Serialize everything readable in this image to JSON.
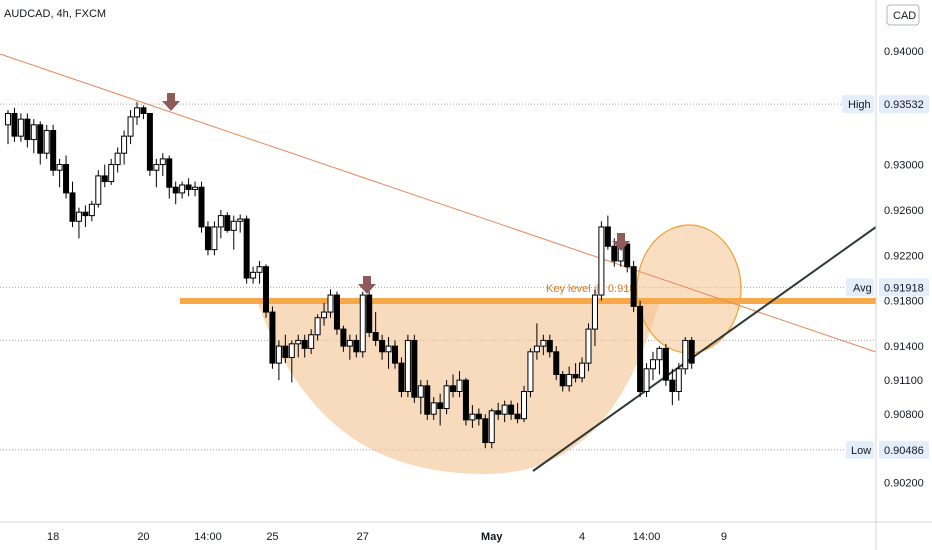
{
  "symbol": "AUDCAD, 4h, FXCM",
  "currency": "CAD",
  "colors": {
    "bull_fill": "#ffffff",
    "bear_fill": "#000000",
    "candle_stroke": "#000000",
    "trend": "#e8875a",
    "key_band": "#f7a94a",
    "cup_fill": "#f4c28f",
    "support": "#2f3b33",
    "arrow": "#8e5a5a",
    "label_bg": "#e3eefa"
  },
  "price_labels": {
    "high": {
      "name": "High",
      "value": "0.93532"
    },
    "avg": {
      "name": "Avg",
      "value": "0.91918"
    },
    "low": {
      "name": "Low",
      "value": "0.90486"
    }
  },
  "annotation": "Key  level @ 0.918",
  "chart_data": {
    "type": "candlestick",
    "title": "AUDCAD, 4h, FXCM",
    "y_unit": "CAD",
    "ylim": [
      0.8985,
      0.9445
    ],
    "y_ticks": [
      0.94,
      0.93,
      0.926,
      0.922,
      0.918,
      0.914,
      0.911,
      0.908,
      0.902
    ],
    "y_tick_labels": [
      "0.94000",
      "0.93000",
      "0.92600",
      "0.92200",
      "0.91800",
      "0.91400",
      "0.91100",
      "0.90800",
      "0.90200"
    ],
    "x_tick_labels": [
      "18",
      "20",
      "14:00",
      "25",
      "27",
      "May",
      "4",
      "14:00",
      "9"
    ],
    "x_tick_index": [
      7,
      21,
      31,
      41,
      55,
      75,
      89,
      99,
      111
    ],
    "reference_lines": {
      "high": 0.93532,
      "avg": 0.91918,
      "low": 0.90486
    },
    "key_level": 0.918,
    "candles": [
      [
        0.9335,
        0.9348,
        0.9318,
        0.9345
      ],
      [
        0.9345,
        0.935,
        0.932,
        0.9325
      ],
      [
        0.9325,
        0.9345,
        0.932,
        0.934
      ],
      [
        0.934,
        0.9345,
        0.9315,
        0.9322
      ],
      [
        0.9322,
        0.934,
        0.931,
        0.9335
      ],
      [
        0.9335,
        0.9338,
        0.93,
        0.931
      ],
      [
        0.931,
        0.9335,
        0.9305,
        0.933
      ],
      [
        0.933,
        0.9335,
        0.929,
        0.9295
      ],
      [
        0.9295,
        0.9305,
        0.928,
        0.93
      ],
      [
        0.93,
        0.9308,
        0.927,
        0.9275
      ],
      [
        0.9275,
        0.9285,
        0.9245,
        0.925
      ],
      [
        0.925,
        0.9262,
        0.9235,
        0.9258
      ],
      [
        0.9258,
        0.9264,
        0.9245,
        0.9255
      ],
      [
        0.9255,
        0.9268,
        0.925,
        0.9265
      ],
      [
        0.9265,
        0.9295,
        0.9262,
        0.929
      ],
      [
        0.929,
        0.93,
        0.928,
        0.9285
      ],
      [
        0.9285,
        0.9305,
        0.9282,
        0.93
      ],
      [
        0.93,
        0.9315,
        0.9293,
        0.931
      ],
      [
        0.931,
        0.933,
        0.93,
        0.9325
      ],
      [
        0.9325,
        0.9348,
        0.9318,
        0.9342
      ],
      [
        0.9342,
        0.9355,
        0.9335,
        0.935
      ],
      [
        0.935,
        0.9352,
        0.934,
        0.9345
      ],
      [
        0.9345,
        0.9345,
        0.929,
        0.9295
      ],
      [
        0.9295,
        0.9305,
        0.928,
        0.93
      ],
      [
        0.93,
        0.931,
        0.929,
        0.9305
      ],
      [
        0.9305,
        0.9308,
        0.927,
        0.928
      ],
      [
        0.928,
        0.9285,
        0.9265,
        0.9275
      ],
      [
        0.9275,
        0.9285,
        0.927,
        0.9282
      ],
      [
        0.9282,
        0.9288,
        0.9272,
        0.9278
      ],
      [
        0.9278,
        0.9285,
        0.9272,
        0.928
      ],
      [
        0.928,
        0.9285,
        0.924,
        0.9245
      ],
      [
        0.9245,
        0.925,
        0.922,
        0.9225
      ],
      [
        0.9225,
        0.925,
        0.922,
        0.9245
      ],
      [
        0.9245,
        0.926,
        0.9235,
        0.9255
      ],
      [
        0.9255,
        0.9258,
        0.924,
        0.9242
      ],
      [
        0.9242,
        0.9255,
        0.9225,
        0.925
      ],
      [
        0.925,
        0.9256,
        0.924,
        0.9252
      ],
      [
        0.9252,
        0.9255,
        0.9195,
        0.92
      ],
      [
        0.92,
        0.921,
        0.9195,
        0.9205
      ],
      [
        0.9205,
        0.9215,
        0.9195,
        0.921
      ],
      [
        0.921,
        0.9212,
        0.9165,
        0.917
      ],
      [
        0.917,
        0.9175,
        0.912,
        0.9125
      ],
      [
        0.9125,
        0.9145,
        0.911,
        0.914
      ],
      [
        0.914,
        0.915,
        0.9125,
        0.913
      ],
      [
        0.913,
        0.9145,
        0.9108,
        0.9142
      ],
      [
        0.9142,
        0.915,
        0.913,
        0.9145
      ],
      [
        0.9145,
        0.915,
        0.913,
        0.9138
      ],
      [
        0.9138,
        0.9155,
        0.9133,
        0.915
      ],
      [
        0.915,
        0.9168,
        0.9145,
        0.9165
      ],
      [
        0.9165,
        0.9178,
        0.9158,
        0.917
      ],
      [
        0.917,
        0.919,
        0.9165,
        0.9185
      ],
      [
        0.9185,
        0.9188,
        0.915,
        0.9155
      ],
      [
        0.9155,
        0.9158,
        0.9135,
        0.914
      ],
      [
        0.914,
        0.915,
        0.9128,
        0.9145
      ],
      [
        0.9145,
        0.915,
        0.913,
        0.9135
      ],
      [
        0.9135,
        0.9188,
        0.913,
        0.9185
      ],
      [
        0.9185,
        0.9188,
        0.9148,
        0.9152
      ],
      [
        0.9152,
        0.917,
        0.914,
        0.9145
      ],
      [
        0.9145,
        0.915,
        0.9128,
        0.9135
      ],
      [
        0.9135,
        0.9148,
        0.912,
        0.914
      ],
      [
        0.914,
        0.9145,
        0.912,
        0.9125
      ],
      [
        0.9125,
        0.913,
        0.9095,
        0.91
      ],
      [
        0.91,
        0.915,
        0.9095,
        0.9145
      ],
      [
        0.9145,
        0.915,
        0.909,
        0.9095
      ],
      [
        0.9095,
        0.911,
        0.908,
        0.9105
      ],
      [
        0.9105,
        0.911,
        0.9075,
        0.908
      ],
      [
        0.908,
        0.9095,
        0.9075,
        0.909
      ],
      [
        0.909,
        0.9098,
        0.907,
        0.9085
      ],
      [
        0.9085,
        0.911,
        0.908,
        0.9105
      ],
      [
        0.9105,
        0.9115,
        0.9095,
        0.91
      ],
      [
        0.91,
        0.9118,
        0.9095,
        0.911
      ],
      [
        0.911,
        0.9112,
        0.907,
        0.9075
      ],
      [
        0.9075,
        0.9088,
        0.9068,
        0.908
      ],
      [
        0.908,
        0.9085,
        0.907,
        0.9076
      ],
      [
        0.9076,
        0.908,
        0.905,
        0.9055
      ],
      [
        0.9055,
        0.9085,
        0.905,
        0.9083
      ],
      [
        0.9083,
        0.909,
        0.9075,
        0.908
      ],
      [
        0.908,
        0.9092,
        0.9073,
        0.9088
      ],
      [
        0.9088,
        0.9092,
        0.9075,
        0.908
      ],
      [
        0.908,
        0.909,
        0.9072,
        0.9076
      ],
      [
        0.9076,
        0.9105,
        0.9073,
        0.91
      ],
      [
        0.91,
        0.9138,
        0.9095,
        0.9135
      ],
      [
        0.9135,
        0.916,
        0.9128,
        0.914
      ],
      [
        0.914,
        0.915,
        0.9132,
        0.9145
      ],
      [
        0.9145,
        0.915,
        0.913,
        0.9135
      ],
      [
        0.9135,
        0.914,
        0.911,
        0.9115
      ],
      [
        0.9115,
        0.9118,
        0.91,
        0.9105
      ],
      [
        0.9105,
        0.9122,
        0.91,
        0.9115
      ],
      [
        0.9115,
        0.9125,
        0.9108,
        0.9112
      ],
      [
        0.9112,
        0.913,
        0.9108,
        0.9125
      ],
      [
        0.9125,
        0.916,
        0.9118,
        0.9155
      ],
      [
        0.9155,
        0.919,
        0.914,
        0.9185
      ],
      [
        0.9185,
        0.925,
        0.918,
        0.9245
      ],
      [
        0.9245,
        0.9255,
        0.9225,
        0.9228
      ],
      [
        0.9228,
        0.9235,
        0.921,
        0.9215
      ],
      [
        0.9215,
        0.9232,
        0.921,
        0.923
      ],
      [
        0.923,
        0.9232,
        0.9205,
        0.921
      ],
      [
        0.921,
        0.9215,
        0.917,
        0.9175
      ],
      [
        0.9175,
        0.918,
        0.9095,
        0.91
      ],
      [
        0.91,
        0.9125,
        0.9095,
        0.912
      ],
      [
        0.912,
        0.9135,
        0.911,
        0.9128
      ],
      [
        0.9128,
        0.914,
        0.9115,
        0.9138
      ],
      [
        0.9138,
        0.9142,
        0.9105,
        0.911
      ],
      [
        0.911,
        0.912,
        0.9088,
        0.91
      ],
      [
        0.91,
        0.9125,
        0.9092,
        0.912
      ],
      [
        0.912,
        0.9148,
        0.9115,
        0.9145
      ],
      [
        0.9145,
        0.9148,
        0.912,
        0.9125
      ]
    ]
  }
}
